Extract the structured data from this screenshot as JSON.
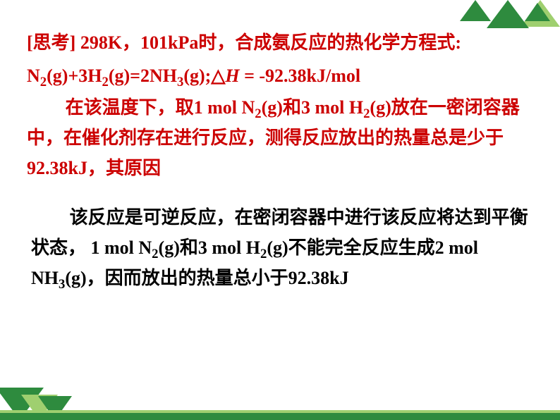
{
  "colors": {
    "accent_red": "#cc0000",
    "text_black": "#000000",
    "tree_dark": "#2e8b3e",
    "tree_light": "#9fcf6f",
    "background": "#ffffff"
  },
  "typography": {
    "body_fontsize_pt": 20,
    "font_family": "SimSun / Times New Roman",
    "weight": "bold",
    "line_height": 1.65
  },
  "slide": {
    "heading_prefix": "[思考] ",
    "heading_body": "298K，101kPa时，合成氨反应的热化学方程式:",
    "equation": {
      "lhs_n2": "N",
      "lhs_n2_sub": "2",
      "lhs_n2_state": "(g)+3H",
      "lhs_h2_sub": "2",
      "lhs_h2_state": "(g)=2NH",
      "rhs_nh3_sub": "3",
      "rhs_nh3_state": "(g);△",
      "deltaH_sym": "H ",
      "eq_tail": " = -92.38kJ/mol"
    },
    "para1": {
      "t1": "在该温度下，取1 mol N",
      "s1": "2",
      "t2": "(g)和3 mol H",
      "s2": "2",
      "t3": "(g)放在一密闭容器中，在催化剂存在进行反应，测得反应放出的热量总是少于92.38kJ，其原因"
    },
    "para2": {
      "t1": "该反应是可逆反应，在密闭容器中进行该反应将达到平衡状态， 1 mol N",
      "s1": "2",
      "t2": "(g)和3 mol H",
      "s2": "2",
      "t3": "(g)不能完全反应生成2 mol NH",
      "s3": "3",
      "t4": "(g)，因而放出的热量总小于92.38kJ"
    }
  }
}
